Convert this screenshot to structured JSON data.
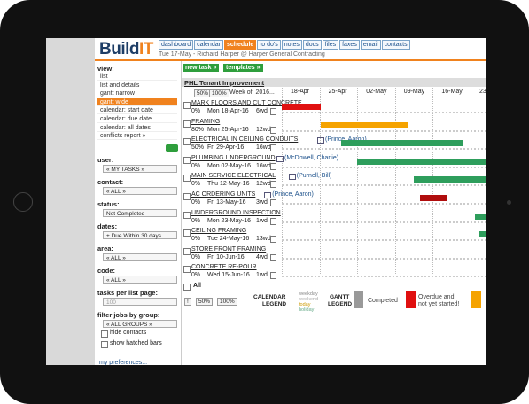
{
  "header": {
    "logo": [
      "Build",
      "IT"
    ],
    "tabs": [
      "dashboard",
      "calendar",
      "schedule",
      "to do's",
      "notes",
      "docs",
      "files",
      "faxes",
      "email",
      "contacts"
    ],
    "subline": "Tue 17-May - Richard Harper @ Harper General Contracting"
  },
  "sidebar": {
    "view_label": "view:",
    "views": [
      "list",
      "list and details",
      "gantt narrow",
      "gantt wide",
      "calendar: start date",
      "calendar: due date",
      "calendar: all dates",
      "conflicts report »"
    ],
    "filters": [
      {
        "label": "user:",
        "value": "« MY TASKS »"
      },
      {
        "label": "contact:",
        "value": "« ALL »"
      },
      {
        "label": "status:",
        "value": "Not Completed"
      },
      {
        "label": "dates:",
        "value": "+ Due Within 30 days"
      },
      {
        "label": "area:",
        "value": "« ALL »"
      },
      {
        "label": "code:",
        "value": "« ALL »"
      },
      {
        "label": "tasks per list page:",
        "value": "100"
      },
      {
        "label": "filter jobs by group:",
        "value": "« ALL GROUPS »"
      }
    ],
    "checkboxes": [
      "hide contacts",
      "show hatched bars"
    ],
    "preferences": "my preferences..."
  },
  "toolbar": {
    "buttons": [
      "new task »",
      "templates »"
    ]
  },
  "gantt": {
    "project": "PHL Tenant Improvement",
    "zoom": [
      "50%",
      "100%"
    ],
    "week_of": "Week of: 2016...",
    "weeks": [
      "18-Apr",
      "25-Apr",
      "02-May",
      "09-May",
      "16-May",
      "23-May"
    ],
    "tasks": [
      {
        "name": "MARK FLOORS AND CUT CONCRETE",
        "assignee": null,
        "percent": "0%",
        "start": "Mon 18-Apr-16",
        "duration": "6wd"
      },
      {
        "name": "FRAMING",
        "assignee": null,
        "percent": "80%",
        "start": "Mon 25-Apr-16",
        "duration": "12wd"
      },
      {
        "name": "ELECTRICAL IN CEILING CONDUITS",
        "assignee": "(Prince, Aaron)",
        "percent": "50%",
        "start": "Fri 29-Apr-16",
        "duration": "16wd"
      },
      {
        "name": "PLUMBING UNDERGROUND",
        "assignee": "(McDowell, Charlie)",
        "percent": "0%",
        "start": "Mon 02-May-16",
        "duration": "16wd"
      },
      {
        "name": "MAIN SERVICE ELECTRICAL",
        "assignee": "(Purnell, Bill)",
        "percent": "0%",
        "start": "Thu 12-May-16",
        "duration": "12wd"
      },
      {
        "name": "AC ORDERING UNITS",
        "assignee": "(Prince, Aaron)",
        "percent": "0%",
        "start": "Fri 13-May-16",
        "duration": "3wd"
      },
      {
        "name": "UNDERGROUND INSPECTION",
        "assignee": null,
        "percent": "0%",
        "start": "Mon 23-May-16",
        "duration": "1wd"
      },
      {
        "name": "CEILING FRAMING",
        "assignee": null,
        "percent": "0%",
        "start": "Tue 24-May-16",
        "duration": "13wd"
      },
      {
        "name": "STORE FRONT FRAMING",
        "assignee": null,
        "percent": "0%",
        "start": "Fri 10-Jun-16",
        "duration": "4wd"
      },
      {
        "name": "CONCRETE RE-POUR",
        "assignee": null,
        "percent": "0%",
        "start": "Wed 15-Jun-16",
        "duration": "1wd"
      }
    ],
    "all_label": "All"
  },
  "footer": {
    "buttons": [
      "!",
      "50%",
      "100%"
    ],
    "calendar_legend": {
      "title": [
        "CALENDAR",
        "LEGEND"
      ],
      "items": [
        "weekday",
        "weekend",
        "today",
        "holiday"
      ]
    },
    "gantt_legend": {
      "title": [
        "GANTT",
        "LEGEND"
      ],
      "items": [
        "Completed",
        [
          "Overdue and",
          "not yet started!"
        ]
      ]
    }
  }
}
